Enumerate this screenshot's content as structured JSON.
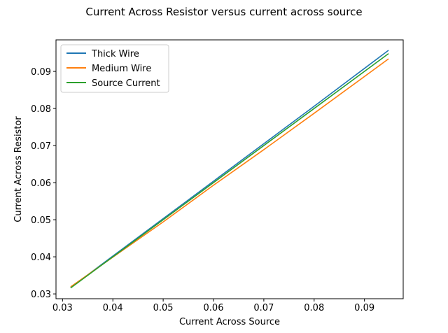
{
  "chart_data": {
    "type": "line",
    "title": "Current Across Resistor versus current across source",
    "xlabel": "Current Across Source",
    "ylabel": "Current Across Resistor",
    "xlim": [
      0.0287,
      0.0977
    ],
    "ylim": [
      0.0287,
      0.0985
    ],
    "xticks": [
      0.03,
      0.04,
      0.05,
      0.06,
      0.07,
      0.08,
      0.09
    ],
    "xtick_labels": [
      "0.03",
      "0.04",
      "0.05",
      "0.06",
      "0.07",
      "0.08",
      "0.09"
    ],
    "yticks": [
      0.03,
      0.04,
      0.05,
      0.06,
      0.07,
      0.08,
      0.09
    ],
    "ytick_labels": [
      "0.03",
      "0.04",
      "0.05",
      "0.06",
      "0.07",
      "0.08",
      "0.09"
    ],
    "grid": false,
    "legend_position": "upper-left",
    "series": [
      {
        "name": "Thick Wire",
        "color": "#1f77b4",
        "points": [
          [
            0.0317,
            0.0318
          ],
          [
            0.04,
            0.0402
          ],
          [
            0.05,
            0.0503
          ],
          [
            0.06,
            0.0604
          ],
          [
            0.07,
            0.0705
          ],
          [
            0.08,
            0.0806
          ],
          [
            0.0947,
            0.0956
          ]
        ]
      },
      {
        "name": "Medium Wire",
        "color": "#ff7f0e",
        "points": [
          [
            0.0317,
            0.032
          ],
          [
            0.04,
            0.0399
          ],
          [
            0.05,
            0.0494
          ],
          [
            0.06,
            0.0593
          ],
          [
            0.07,
            0.0689
          ],
          [
            0.08,
            0.0787
          ],
          [
            0.0947,
            0.0933
          ]
        ]
      },
      {
        "name": "Source Current",
        "color": "#2ca02c",
        "points": [
          [
            0.0317,
            0.0317
          ],
          [
            0.04,
            0.04
          ],
          [
            0.05,
            0.05
          ],
          [
            0.06,
            0.06
          ],
          [
            0.07,
            0.07
          ],
          [
            0.08,
            0.08
          ],
          [
            0.0947,
            0.0947
          ]
        ]
      }
    ]
  }
}
